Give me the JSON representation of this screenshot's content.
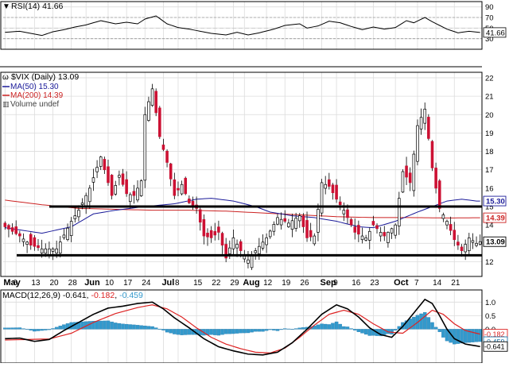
{
  "chart_data": {
    "type": "candlestick",
    "x_labels": [
      "May",
      "6",
      "13",
      "20",
      "28",
      "Jun",
      "10",
      "17",
      "24",
      "Jul",
      "8",
      "15",
      "22",
      "29",
      "Aug",
      "12",
      "19",
      "26",
      "Sep",
      "9",
      "16",
      "23",
      "Oct",
      "7",
      "14",
      "21"
    ],
    "x_label_index": [
      0,
      3,
      8,
      13,
      18,
      22,
      28,
      33,
      38,
      43,
      47,
      52,
      57,
      62,
      65,
      71,
      76,
      81,
      86,
      90,
      95,
      100,
      106,
      112,
      117,
      122
    ],
    "rsi_panel": {
      "legend": "RSI(14) 41.66",
      "ticks": [
        90,
        70,
        50,
        30
      ],
      "ylim": [
        10,
        100
      ],
      "current_label": "41.66",
      "overbought": 70,
      "oversold": 30
    },
    "price_panel": {
      "legend_title": "$VIX (Daily) 13.09",
      "legend_ma50": "MA(50) 15.30",
      "legend_ma200": "MA(200) 14.39",
      "legend_volume": "Volume undef",
      "ticks": [
        22,
        21,
        20,
        19,
        18,
        17,
        16,
        15,
        14,
        13,
        12
      ],
      "ylim": [
        11.2,
        22.3
      ],
      "last_price_label": "13.09",
      "ma50_label": "15.30",
      "ma200_label": "14.39",
      "support_level": 12.35,
      "resistance_level": 15.0
    },
    "macd_panel": {
      "legend_prefix": "MACD(12,26,9) -0.641, ",
      "legend_signal": "-0.182",
      "legend_sep": ", ",
      "legend_hist": "-0.459",
      "ticks": [
        1.0,
        0.5,
        0.0
      ],
      "ylim": [
        -1.25,
        1.45
      ],
      "macd_label": "-0.641",
      "signal_label": "-0.182",
      "hist_label": "-0.459"
    },
    "colors": {
      "up": "#ffffff",
      "down": "#cc1133",
      "ma50": "#1a1a99",
      "ma200": "#cc2222",
      "histogram": "#3399cc",
      "macd": "#000000",
      "signal": "#dd2222",
      "level_line": "#000000"
    }
  },
  "anchors": {
    "close": [
      [
        0,
        13.9
      ],
      [
        4,
        13.4
      ],
      [
        7,
        12.9
      ],
      [
        10,
        12.7
      ],
      [
        14,
        12.7
      ],
      [
        18,
        14.2
      ],
      [
        20,
        14.8
      ],
      [
        23,
        16.0
      ],
      [
        26,
        17.7
      ],
      [
        29,
        15.6
      ],
      [
        31,
        16.7
      ],
      [
        33,
        15.7
      ],
      [
        35,
        15.6
      ],
      [
        37,
        16.4
      ],
      [
        38,
        20.0
      ],
      [
        40,
        21.4
      ],
      [
        42,
        18.8
      ],
      [
        44,
        17.4
      ],
      [
        46,
        15.6
      ],
      [
        48,
        16.2
      ],
      [
        50,
        15.2
      ],
      [
        52,
        14.9
      ],
      [
        54,
        13.4
      ],
      [
        56,
        13.3
      ],
      [
        58,
        13.6
      ],
      [
        60,
        12.2
      ],
      [
        62,
        13.3
      ],
      [
        64,
        12.6
      ],
      [
        66,
        12.1
      ],
      [
        68,
        12.6
      ],
      [
        71,
        13.3
      ],
      [
        74,
        14.4
      ],
      [
        77,
        14.1
      ],
      [
        80,
        14.5
      ],
      [
        82,
        13.3
      ],
      [
        84,
        13.4
      ],
      [
        86,
        16.3
      ],
      [
        88,
        16.1
      ],
      [
        90,
        15.4
      ],
      [
        92,
        14.8
      ],
      [
        95,
        13.6
      ],
      [
        98,
        13.3
      ],
      [
        100,
        14.0
      ],
      [
        103,
        13.4
      ],
      [
        106,
        14.0
      ],
      [
        108,
        16.9
      ],
      [
        110,
        16.3
      ],
      [
        112,
        19.4
      ],
      [
        114,
        20.3
      ],
      [
        116,
        17.1
      ],
      [
        118,
        14.9
      ],
      [
        120,
        14.2
      ],
      [
        122,
        13.2
      ],
      [
        124,
        12.6
      ],
      [
        126,
        13.3
      ],
      [
        128,
        13.0
      ],
      [
        129,
        13.09
      ]
    ],
    "ma50": [
      [
        0,
        13.85
      ],
      [
        10,
        13.55
      ],
      [
        18,
        13.9
      ],
      [
        24,
        14.6
      ],
      [
        30,
        14.8
      ],
      [
        38,
        15.0
      ],
      [
        46,
        15.15
      ],
      [
        52,
        15.4
      ],
      [
        56,
        15.45
      ],
      [
        62,
        15.3
      ],
      [
        68,
        15.0
      ],
      [
        72,
        14.7
      ],
      [
        78,
        14.5
      ],
      [
        84,
        14.4
      ],
      [
        90,
        14.2
      ],
      [
        96,
        13.9
      ],
      [
        100,
        13.85
      ],
      [
        106,
        14.2
      ],
      [
        112,
        14.7
      ],
      [
        116,
        15.0
      ],
      [
        120,
        15.3
      ],
      [
        124,
        15.4
      ],
      [
        128,
        15.3
      ]
    ],
    "ma200": [
      [
        0,
        15.35
      ],
      [
        10,
        15.1
      ],
      [
        20,
        14.9
      ],
      [
        30,
        14.85
      ],
      [
        40,
        14.8
      ],
      [
        50,
        14.8
      ],
      [
        60,
        14.75
      ],
      [
        70,
        14.65
      ],
      [
        80,
        14.55
      ],
      [
        90,
        14.45
      ],
      [
        100,
        14.4
      ],
      [
        110,
        14.4
      ],
      [
        120,
        14.38
      ],
      [
        128,
        14.39
      ]
    ],
    "rsi": [
      [
        0,
        42
      ],
      [
        4,
        44
      ],
      [
        7,
        40
      ],
      [
        10,
        36
      ],
      [
        13,
        43
      ],
      [
        16,
        47
      ],
      [
        19,
        52
      ],
      [
        22,
        56
      ],
      [
        26,
        64
      ],
      [
        30,
        58
      ],
      [
        33,
        61
      ],
      [
        36,
        58
      ],
      [
        38,
        67
      ],
      [
        41,
        73
      ],
      [
        44,
        58
      ],
      [
        47,
        51
      ],
      [
        50,
        48
      ],
      [
        53,
        44
      ],
      [
        56,
        40
      ],
      [
        60,
        37
      ],
      [
        63,
        42
      ],
      [
        66,
        37
      ],
      [
        69,
        41
      ],
      [
        73,
        48
      ],
      [
        76,
        55
      ],
      [
        80,
        58
      ],
      [
        82,
        50
      ],
      [
        85,
        54
      ],
      [
        88,
        63
      ],
      [
        91,
        60
      ],
      [
        94,
        53
      ],
      [
        97,
        47
      ],
      [
        100,
        52
      ],
      [
        103,
        48
      ],
      [
        106,
        51
      ],
      [
        109,
        64
      ],
      [
        111,
        60
      ],
      [
        114,
        70
      ],
      [
        116,
        62
      ],
      [
        118,
        55
      ],
      [
        120,
        48
      ],
      [
        123,
        41
      ],
      [
        126,
        44
      ],
      [
        129,
        41.66
      ]
    ],
    "macd": [
      [
        0,
        -0.35
      ],
      [
        4,
        -0.33
      ],
      [
        8,
        -0.45
      ],
      [
        12,
        -0.38
      ],
      [
        16,
        -0.05
      ],
      [
        20,
        0.25
      ],
      [
        24,
        0.55
      ],
      [
        28,
        0.78
      ],
      [
        32,
        0.85
      ],
      [
        36,
        0.95
      ],
      [
        40,
        1.0
      ],
      [
        43,
        0.75
      ],
      [
        46,
        0.42
      ],
      [
        50,
        0.05
      ],
      [
        54,
        -0.35
      ],
      [
        58,
        -0.65
      ],
      [
        62,
        -0.8
      ],
      [
        66,
        -0.92
      ],
      [
        70,
        -0.95
      ],
      [
        74,
        -0.85
      ],
      [
        78,
        -0.5
      ],
      [
        82,
        0.0
      ],
      [
        86,
        0.55
      ],
      [
        90,
        0.9
      ],
      [
        93,
        0.75
      ],
      [
        96,
        0.45
      ],
      [
        99,
        0.05
      ],
      [
        102,
        -0.2
      ],
      [
        105,
        -0.3
      ],
      [
        108,
        0.1
      ],
      [
        111,
        0.6
      ],
      [
        114,
        1.1
      ],
      [
        116,
        0.95
      ],
      [
        118,
        0.5
      ],
      [
        120,
        0.0
      ],
      [
        122,
        -0.35
      ],
      [
        125,
        -0.55
      ],
      [
        129,
        -0.641
      ]
    ],
    "signal": [
      [
        0,
        -0.4
      ],
      [
        6,
        -0.38
      ],
      [
        12,
        -0.36
      ],
      [
        18,
        -0.15
      ],
      [
        24,
        0.25
      ],
      [
        30,
        0.58
      ],
      [
        36,
        0.8
      ],
      [
        40,
        0.9
      ],
      [
        44,
        0.75
      ],
      [
        48,
        0.45
      ],
      [
        52,
        0.05
      ],
      [
        56,
        -0.3
      ],
      [
        60,
        -0.55
      ],
      [
        64,
        -0.72
      ],
      [
        68,
        -0.85
      ],
      [
        72,
        -0.88
      ],
      [
        76,
        -0.7
      ],
      [
        80,
        -0.3
      ],
      [
        84,
        0.15
      ],
      [
        88,
        0.55
      ],
      [
        92,
        0.7
      ],
      [
        96,
        0.55
      ],
      [
        100,
        0.2
      ],
      [
        104,
        -0.1
      ],
      [
        108,
        -0.15
      ],
      [
        112,
        0.25
      ],
      [
        116,
        0.7
      ],
      [
        119,
        0.55
      ],
      [
        122,
        0.2
      ],
      [
        125,
        -0.05
      ],
      [
        129,
        -0.182
      ]
    ]
  }
}
